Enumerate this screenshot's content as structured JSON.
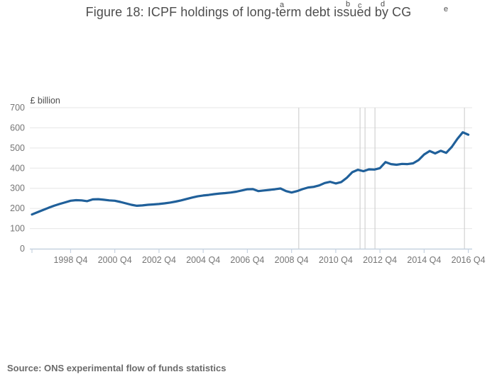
{
  "title": {
    "text": "Figure 18: ICPF holdings of long-term debt issued by CG",
    "footnote_markers": [
      "a",
      "b",
      "c",
      "d",
      "e"
    ]
  },
  "source": "Source: ONS experimental flow of funds statistics",
  "colors": {
    "line": "#20609a",
    "grid": "#e6e6e6",
    "reference_line": "#d2d2d2",
    "axis": "#c6d2e0",
    "title_text": "#4d4d4d",
    "tick_text": "#757575",
    "source_text": "#6b6b6b"
  },
  "chart_data": {
    "type": "line",
    "title": "Figure 18: ICPF holdings of long-term debt issued by CG",
    "ylabel": "£ billion",
    "xlabel": "",
    "ylim": [
      0,
      700
    ],
    "y_ticks": [
      0,
      100,
      200,
      300,
      400,
      500,
      600,
      700
    ],
    "x_tick_labels": [
      "1998 Q4",
      "2000 Q4",
      "2002 Q4",
      "2004 Q4",
      "2006 Q4",
      "2008 Q4",
      "2010 Q4",
      "2012 Q4",
      "2014 Q4",
      "2016 Q4"
    ],
    "grid": "horizontal",
    "legend": "none",
    "x": [
      "1997 Q1",
      "1997 Q2",
      "1997 Q3",
      "1997 Q4",
      "1998 Q1",
      "1998 Q2",
      "1998 Q3",
      "1998 Q4",
      "1999 Q1",
      "1999 Q2",
      "1999 Q3",
      "1999 Q4",
      "2000 Q1",
      "2000 Q2",
      "2000 Q3",
      "2000 Q4",
      "2001 Q1",
      "2001 Q2",
      "2001 Q3",
      "2001 Q4",
      "2002 Q1",
      "2002 Q2",
      "2002 Q3",
      "2002 Q4",
      "2003 Q1",
      "2003 Q2",
      "2003 Q3",
      "2003 Q4",
      "2004 Q1",
      "2004 Q2",
      "2004 Q3",
      "2004 Q4",
      "2005 Q1",
      "2005 Q2",
      "2005 Q3",
      "2005 Q4",
      "2006 Q1",
      "2006 Q2",
      "2006 Q3",
      "2006 Q4",
      "2007 Q1",
      "2007 Q2",
      "2007 Q3",
      "2007 Q4",
      "2008 Q1",
      "2008 Q2",
      "2008 Q3",
      "2008 Q4",
      "2009 Q1",
      "2009 Q2",
      "2009 Q3",
      "2009 Q4",
      "2010 Q1",
      "2010 Q2",
      "2010 Q3",
      "2010 Q4",
      "2011 Q1",
      "2011 Q2",
      "2011 Q3",
      "2011 Q4",
      "2012 Q1",
      "2012 Q2",
      "2012 Q3",
      "2012 Q4",
      "2013 Q1",
      "2013 Q2",
      "2013 Q3",
      "2013 Q4",
      "2014 Q1",
      "2014 Q2",
      "2014 Q3",
      "2014 Q4",
      "2015 Q1",
      "2015 Q2",
      "2015 Q3",
      "2015 Q4",
      "2016 Q1",
      "2016 Q2",
      "2016 Q3",
      "2016 Q4"
    ],
    "series": [
      {
        "name": "ICPF holdings of long-term debt issued by CG (£ billion)",
        "values": [
          170,
          181,
          192,
          203,
          213,
          222,
          230,
          238,
          241,
          240,
          236,
          245,
          246,
          243,
          240,
          238,
          232,
          225,
          218,
          213,
          215,
          218,
          220,
          222,
          225,
          229,
          234,
          240,
          247,
          254,
          260,
          264,
          267,
          271,
          274,
          276,
          279,
          283,
          289,
          295,
          296,
          286,
          289,
          292,
          295,
          299,
          286,
          279,
          286,
          296,
          304,
          307,
          314,
          326,
          332,
          324,
          331,
          352,
          380,
          392,
          385,
          394,
          393,
          400,
          430,
          420,
          417,
          421,
          420,
          424,
          440,
          468,
          485,
          473,
          486,
          476,
          505,
          545,
          578,
          566
        ]
      }
    ],
    "reference_lines": [
      {
        "marker": "a",
        "quarter": "2009 Q1",
        "quarter_index": 48.3
      },
      {
        "marker": "b",
        "quarter": "2011 Q4",
        "quarter_index": 59.4
      },
      {
        "marker": "c",
        "quarter": "2012 Q1",
        "quarter_index": 60.3
      },
      {
        "marker": "d",
        "quarter": "2012 Q3",
        "quarter_index": 62.1
      },
      {
        "marker": "e",
        "quarter": "2016 Q3",
        "quarter_index": 78.3
      }
    ]
  }
}
